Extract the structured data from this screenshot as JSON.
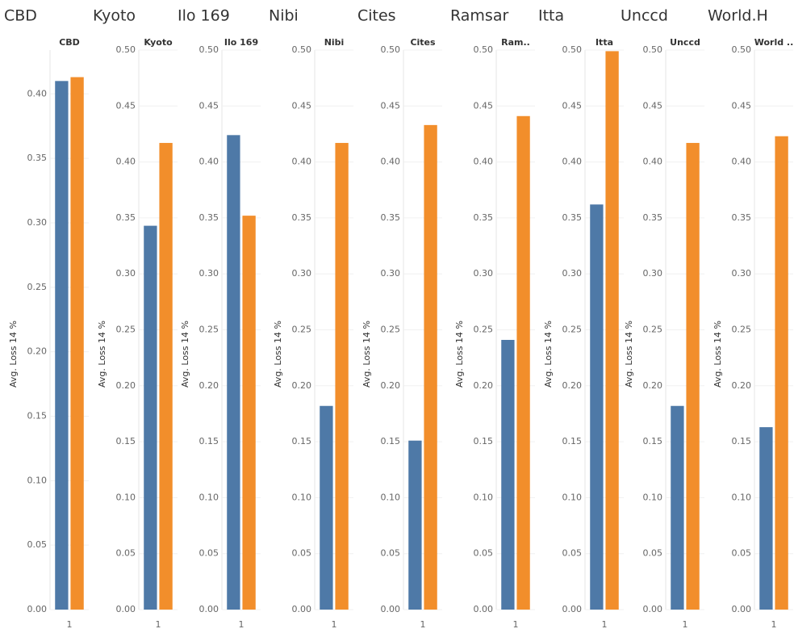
{
  "chart_data": [
    {
      "type": "bar",
      "title": "CBD",
      "header": "CBD",
      "ylabel": "Avg. Loss 14 %",
      "categories": [
        "1"
      ],
      "series": [
        {
          "color": "#4e79a7",
          "values": [
            0.41
          ]
        },
        {
          "color": "#f28e2b",
          "values": [
            0.413
          ]
        }
      ],
      "ylim": [
        0,
        0.434
      ],
      "yticks": [
        {
          "value": 0,
          "label": "0.00"
        },
        0.05,
        {
          "value": 0.1,
          "label": "0.10"
        },
        0.15,
        {
          "value": 0.2,
          "label": "0.20"
        },
        0.25,
        {
          "value": 0.3,
          "label": "0.30"
        },
        0.35,
        {
          "value": 0.4,
          "label": "0.40"
        }
      ],
      "grid": true
    },
    {
      "type": "bar",
      "title": "Kyoto",
      "header": "Kyoto",
      "ylabel": "Avg. Loss 14 %",
      "categories": [
        "1"
      ],
      "series": [
        {
          "color": "#4e79a7",
          "values": [
            0.343
          ]
        },
        {
          "color": "#f28e2b",
          "values": [
            0.417
          ]
        }
      ],
      "ylim": [
        0,
        0.5
      ],
      "yticks": [
        {
          "value": 0,
          "label": "0.00"
        },
        0.05,
        {
          "value": 0.1,
          "label": "0.10"
        },
        0.15,
        {
          "value": 0.2,
          "label": "0.20"
        },
        0.25,
        {
          "value": 0.3,
          "label": "0.30"
        },
        0.35,
        {
          "value": 0.4,
          "label": "0.40"
        },
        0.45,
        {
          "value": 0.5,
          "label": "0.50"
        }
      ],
      "grid": true
    },
    {
      "type": "bar",
      "title": "Ilo 169",
      "header": "Ilo 169",
      "ylabel": "Avg. Loss 14 %",
      "categories": [
        "1"
      ],
      "series": [
        {
          "color": "#4e79a7",
          "values": [
            0.424
          ]
        },
        {
          "color": "#f28e2b",
          "values": [
            0.352
          ]
        }
      ],
      "ylim": [
        0,
        0.5
      ],
      "yticks": [
        {
          "value": 0,
          "label": "0.00"
        },
        0.05,
        {
          "value": 0.1,
          "label": "0.10"
        },
        0.15,
        {
          "value": 0.2,
          "label": "0.20"
        },
        0.25,
        {
          "value": 0.3,
          "label": "0.30"
        },
        0.35,
        {
          "value": 0.4,
          "label": "0.40"
        },
        0.45,
        {
          "value": 0.5,
          "label": "0.50"
        }
      ],
      "grid": true
    },
    {
      "type": "bar",
      "title": "Nibi",
      "header": "Nibi",
      "ylabel": "Avg. Loss 14 %",
      "categories": [
        "1"
      ],
      "series": [
        {
          "color": "#4e79a7",
          "values": [
            0.182
          ]
        },
        {
          "color": "#f28e2b",
          "values": [
            0.417
          ]
        }
      ],
      "ylim": [
        0,
        0.5
      ],
      "yticks": [
        {
          "value": 0,
          "label": "0.00"
        },
        0.05,
        {
          "value": 0.1,
          "label": "0.10"
        },
        0.15,
        {
          "value": 0.2,
          "label": "0.20"
        },
        0.25,
        {
          "value": 0.3,
          "label": "0.30"
        },
        0.35,
        {
          "value": 0.4,
          "label": "0.40"
        },
        0.45,
        {
          "value": 0.5,
          "label": "0.50"
        }
      ],
      "grid": true
    },
    {
      "type": "bar",
      "title": "Cites",
      "header": "Cites",
      "ylabel": "Avg. Loss 14 %",
      "categories": [
        "1"
      ],
      "series": [
        {
          "color": "#4e79a7",
          "values": [
            0.151
          ]
        },
        {
          "color": "#f28e2b",
          "values": [
            0.433
          ]
        }
      ],
      "ylim": [
        0,
        0.5
      ],
      "yticks": [
        {
          "value": 0,
          "label": "0.00"
        },
        0.05,
        {
          "value": 0.1,
          "label": "0.10"
        },
        0.15,
        {
          "value": 0.2,
          "label": "0.20"
        },
        0.25,
        {
          "value": 0.3,
          "label": "0.30"
        },
        0.35,
        {
          "value": 0.4,
          "label": "0.40"
        },
        0.45,
        {
          "value": 0.5,
          "label": "0.50"
        }
      ],
      "grid": true
    },
    {
      "type": "bar",
      "title": "Ramsar",
      "header": "Ram..",
      "ylabel": "Avg. Loss 14 %",
      "categories": [
        "1"
      ],
      "series": [
        {
          "color": "#4e79a7",
          "values": [
            0.241
          ]
        },
        {
          "color": "#f28e2b",
          "values": [
            0.441
          ]
        }
      ],
      "ylim": [
        0,
        0.5
      ],
      "yticks": [
        {
          "value": 0,
          "label": "0.00"
        },
        0.05,
        {
          "value": 0.1,
          "label": "0.10"
        },
        0.15,
        {
          "value": 0.2,
          "label": "0.20"
        },
        0.25,
        {
          "value": 0.3,
          "label": "0.30"
        },
        0.35,
        {
          "value": 0.4,
          "label": "0.40"
        },
        0.45,
        {
          "value": 0.5,
          "label": "0.50"
        }
      ],
      "grid": true
    },
    {
      "type": "bar",
      "title": "Itta",
      "header": "Itta",
      "ylabel": "Avg. Loss 14 %",
      "categories": [
        "1"
      ],
      "series": [
        {
          "color": "#4e79a7",
          "values": [
            0.362
          ]
        },
        {
          "color": "#f28e2b",
          "values": [
            0.499
          ]
        }
      ],
      "ylim": [
        0,
        0.5
      ],
      "yticks": [
        {
          "value": 0,
          "label": "0.00"
        },
        0.05,
        {
          "value": 0.1,
          "label": "0.10"
        },
        0.15,
        {
          "value": 0.2,
          "label": "0.20"
        },
        0.25,
        {
          "value": 0.3,
          "label": "0.30"
        },
        0.35,
        {
          "value": 0.4,
          "label": "0.40"
        },
        0.45,
        {
          "value": 0.5,
          "label": "0.50"
        }
      ],
      "grid": true
    },
    {
      "type": "bar",
      "title": "Unccd",
      "header": "Unccd",
      "ylabel": "Avg. Loss 14 %",
      "categories": [
        "1"
      ],
      "series": [
        {
          "color": "#4e79a7",
          "values": [
            0.182
          ]
        },
        {
          "color": "#f28e2b",
          "values": [
            0.417
          ]
        }
      ],
      "ylim": [
        0,
        0.5
      ],
      "yticks": [
        {
          "value": 0,
          "label": "0.00"
        },
        0.05,
        {
          "value": 0.1,
          "label": "0.10"
        },
        0.15,
        {
          "value": 0.2,
          "label": "0.20"
        },
        0.25,
        {
          "value": 0.3,
          "label": "0.30"
        },
        0.35,
        {
          "value": 0.4,
          "label": "0.40"
        },
        0.45,
        {
          "value": 0.5,
          "label": "0.50"
        }
      ],
      "grid": true
    },
    {
      "type": "bar",
      "title": "World.H",
      "header": "World ..",
      "ylabel": "Avg. Loss 14 %",
      "categories": [
        "1"
      ],
      "series": [
        {
          "color": "#4e79a7",
          "values": [
            0.163
          ]
        },
        {
          "color": "#f28e2b",
          "values": [
            0.423
          ]
        }
      ],
      "ylim": [
        0,
        0.5
      ],
      "yticks": [
        {
          "value": 0,
          "label": "0.00"
        },
        0.05,
        {
          "value": 0.1,
          "label": "0.10"
        },
        0.15,
        {
          "value": 0.2,
          "label": "0.20"
        },
        0.25,
        {
          "value": 0.3,
          "label": "0.30"
        },
        0.35,
        {
          "value": 0.4,
          "label": "0.40"
        },
        0.45,
        {
          "value": 0.5,
          "label": "0.50"
        }
      ],
      "grid": true
    }
  ]
}
